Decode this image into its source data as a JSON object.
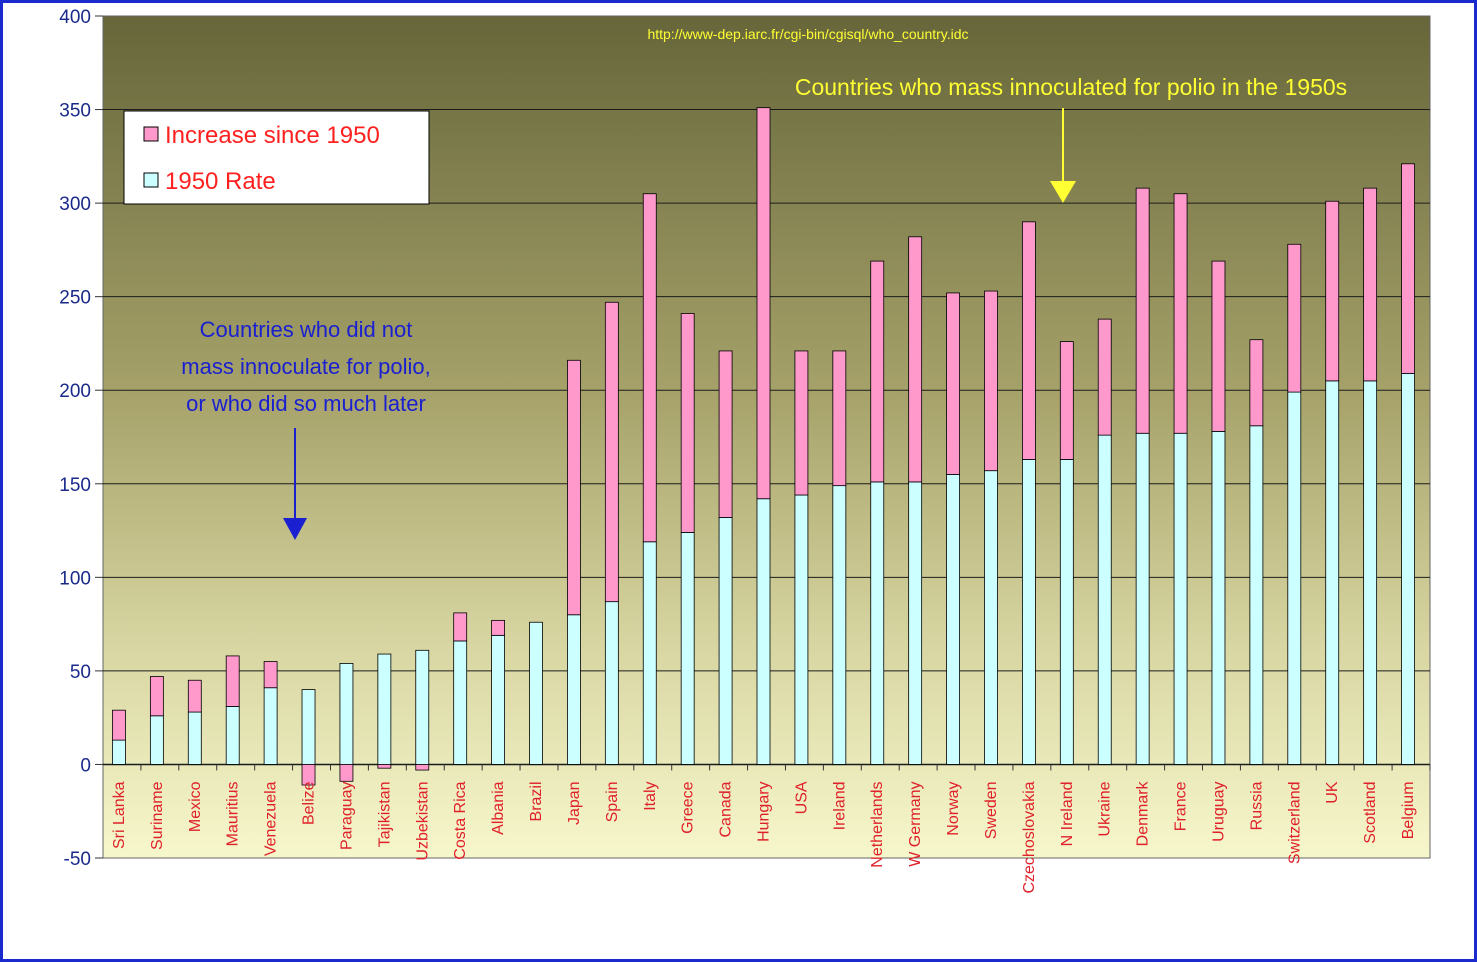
{
  "chart_data": {
    "type": "bar",
    "stacked": true,
    "categories": [
      "Sri Lanka",
      "Suriname",
      "Mexico",
      "Mauritius",
      "Venezuela",
      "Belize",
      "Paraguay",
      "Tajikistan",
      "Uzbekistan",
      "Costa Rica",
      "Albania",
      "Brazil",
      "Japan",
      "Spain",
      "Italy",
      "Greece",
      "Canada",
      "Hungary",
      "USA",
      "Ireland",
      "Netherlands",
      "W Germany",
      "Norway",
      "Sweden",
      "Czechoslovakia",
      "N Ireland",
      "Ukraine",
      "Denmark",
      "France",
      "Uruguay",
      "Russia",
      "Switzerland",
      "UK",
      "Scotland",
      "Belgium"
    ],
    "series": [
      {
        "name": "1950 Rate",
        "color": "#ccffff",
        "values": [
          13,
          26,
          28,
          31,
          41,
          40,
          54,
          59,
          61,
          66,
          69,
          76,
          80,
          87,
          119,
          124,
          132,
          142,
          144,
          149,
          151,
          151,
          155,
          157,
          163,
          163,
          176,
          177,
          177,
          178,
          181,
          199,
          205,
          205,
          209
        ]
      },
      {
        "name": "Increase since 1950",
        "color": "#ff99cc",
        "values": [
          16,
          21,
          17,
          27,
          14,
          -11,
          -9,
          -2,
          -3,
          15,
          8,
          0,
          136,
          160,
          186,
          117,
          89,
          209,
          77,
          72,
          118,
          131,
          97,
          96,
          127,
          63,
          62,
          131,
          128,
          91,
          46,
          79,
          96,
          103,
          112
        ]
      }
    ],
    "ylim": [
      -50,
      400
    ],
    "yticks": [
      "400",
      "350",
      "300",
      "250",
      "200",
      "150",
      "100",
      "50",
      "0",
      "-50"
    ],
    "grid": true,
    "legend_position": "top-left",
    "annotations": {
      "source": "http://www-dep.iarc.fr/cgi-bin/cgisql/who_country.idc",
      "mass_vaccinated": "Countries who mass innoculated for polio in the 1950s",
      "not_vaccinated": [
        "Countries who did not",
        "mass innoculate for polio,",
        "or who did so much later"
      ]
    }
  },
  "colors": {
    "frame": "#1a2acc",
    "plot_top": "#66663a",
    "plot_bottom": "#f5f5c8",
    "category_label": "#e0202a",
    "yellow_note": "#ffff33",
    "blue_note": "#1a20d0"
  }
}
